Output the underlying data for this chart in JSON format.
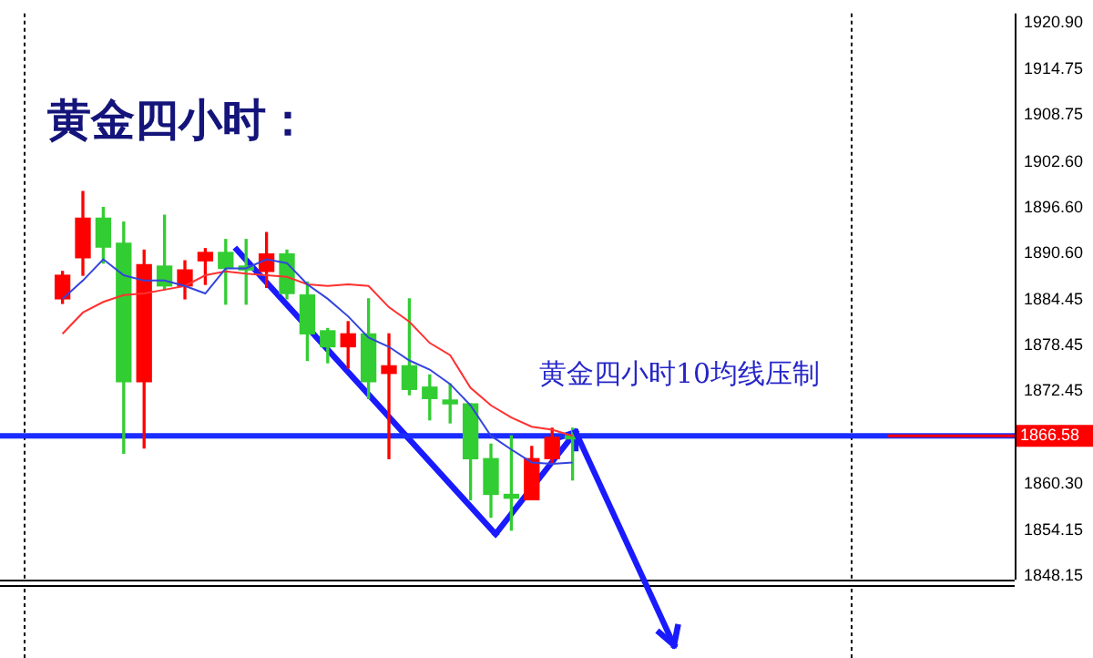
{
  "chart_data": {
    "type": "candlestick",
    "title": "黄金四小时：",
    "annotations": [
      {
        "text": "黄金四小时10均线压制",
        "y": 1866.58
      }
    ],
    "categories": [
      null,
      null,
      null,
      null,
      null,
      null,
      null,
      null,
      null,
      null,
      null,
      null,
      null,
      null,
      null,
      null,
      null,
      null,
      null,
      null,
      null,
      null,
      null,
      null,
      null,
      null
    ],
    "ohlc": [
      [
        1884.6,
        1888.2,
        1884.0,
        1887.7
      ],
      [
        1890.0,
        1898.7,
        1887.7,
        1895.2
      ],
      [
        1895.2,
        1896.6,
        1889.3,
        1891.4
      ],
      [
        1891.9,
        1894.7,
        1864.3,
        1873.7
      ],
      [
        1873.7,
        1891.0,
        1865.0,
        1889.1
      ],
      [
        1888.9,
        1895.6,
        1885.8,
        1886.3
      ],
      [
        1886.3,
        1889.6,
        1884.6,
        1888.4
      ],
      [
        1889.6,
        1891.2,
        1886.5,
        1890.7
      ],
      [
        1890.7,
        1892.4,
        1883.9,
        1888.6
      ],
      [
        1888.9,
        1892.4,
        1883.9,
        1888.4
      ],
      [
        1888.2,
        1893.3,
        1886.1,
        1890.5
      ],
      [
        1890.5,
        1891.0,
        1884.6,
        1885.3
      ],
      [
        1885.1,
        1886.8,
        1876.5,
        1880.0
      ],
      [
        1880.4,
        1880.7,
        1876.2,
        1878.3
      ],
      [
        1878.3,
        1881.6,
        1875.5,
        1880.0
      ],
      [
        1880.0,
        1884.6,
        1871.5,
        1873.7
      ],
      [
        1874.8,
        1880.0,
        1863.6,
        1875.8
      ],
      [
        1875.8,
        1884.6,
        1872.0,
        1872.7
      ],
      [
        1873.0,
        1874.6,
        1868.7,
        1871.5
      ],
      [
        1871.3,
        1873.4,
        1868.3,
        1870.8
      ],
      [
        1870.8,
        1870.8,
        1858.2,
        1863.6
      ],
      [
        1863.6,
        1865.5,
        1855.9,
        1858.9
      ],
      [
        1858.9,
        1866.6,
        1854.2,
        1858.4
      ],
      [
        1858.2,
        1865.2,
        1858.2,
        1863.6
      ],
      [
        1863.6,
        1867.6,
        1863.1,
        1866.4
      ],
      [
        1866.6,
        1867.6,
        1860.8,
        1866.2
      ]
    ],
    "colors": [
      "#ff0000",
      "#ff0000",
      "#32cd32",
      "#32cd32",
      "#ff0000",
      "#32cd32",
      "#ff0000",
      "#ff0000",
      "#32cd32",
      "#32cd32",
      "#ff0000",
      "#32cd32",
      "#32cd32",
      "#32cd32",
      "#ff0000",
      "#32cd32",
      "#ff0000",
      "#32cd32",
      "#32cd32",
      "#32cd32",
      "#32cd32",
      "#32cd32",
      "#32cd32",
      "#ff0000",
      "#ff0000",
      "#32cd32"
    ],
    "series": [
      {
        "type": "line",
        "color": "#3344dd",
        "values": [
          1884.6,
          1887.0,
          1889.8,
          1887.7,
          1887.0,
          1887.0,
          1886.3,
          1885.3,
          1888.6,
          1888.6,
          1889.8,
          1889.3,
          1886.5,
          1884.6,
          1882.3,
          1879.5,
          1878.3,
          1876.5,
          1875.3,
          1873.4,
          1870.6,
          1866.6,
          1864.8,
          1863.1,
          1862.9,
          1863.1
        ]
      },
      {
        "type": "line",
        "color": "#ff3030",
        "values": [
          1880.0,
          1882.8,
          1884.2,
          1885.1,
          1885.3,
          1885.8,
          1886.3,
          1887.7,
          1888.2,
          1887.9,
          1887.7,
          1887.5,
          1886.5,
          1886.3,
          1886.5,
          1886.3,
          1883.5,
          1881.6,
          1878.8,
          1877.2,
          1872.9,
          1870.6,
          1869.0,
          1867.8,
          1867.4,
          1866.6
        ]
      }
    ],
    "ylim": [
      1847.7,
      1922.1
    ],
    "yticks": [
      {
        "value": 1920.9,
        "label": "1920.90"
      },
      {
        "value": 1914.75,
        "label": "1914.75"
      },
      {
        "value": 1908.75,
        "label": "1908.75"
      },
      {
        "value": 1902.6,
        "label": "1902.60"
      },
      {
        "value": 1896.6,
        "label": "1896.60"
      },
      {
        "value": 1890.6,
        "label": "1890.60"
      },
      {
        "value": 1884.45,
        "label": "1884.45"
      },
      {
        "value": 1878.45,
        "label": "1878.45"
      },
      {
        "value": 1872.45,
        "label": "1872.45"
      },
      {
        "value": 1860.3,
        "label": "1860.30"
      },
      {
        "value": 1854.15,
        "label": "1854.15"
      },
      {
        "value": 1848.15,
        "label": "1848.15"
      }
    ],
    "tick_labels": "y",
    "ref_lines": [
      {
        "axis": "y",
        "value": 1866.58,
        "color": "#1a2cff"
      },
      {
        "axis": "y",
        "value": 1866.58,
        "label": "1866.58",
        "color": "#ff0000"
      }
    ]
  }
}
